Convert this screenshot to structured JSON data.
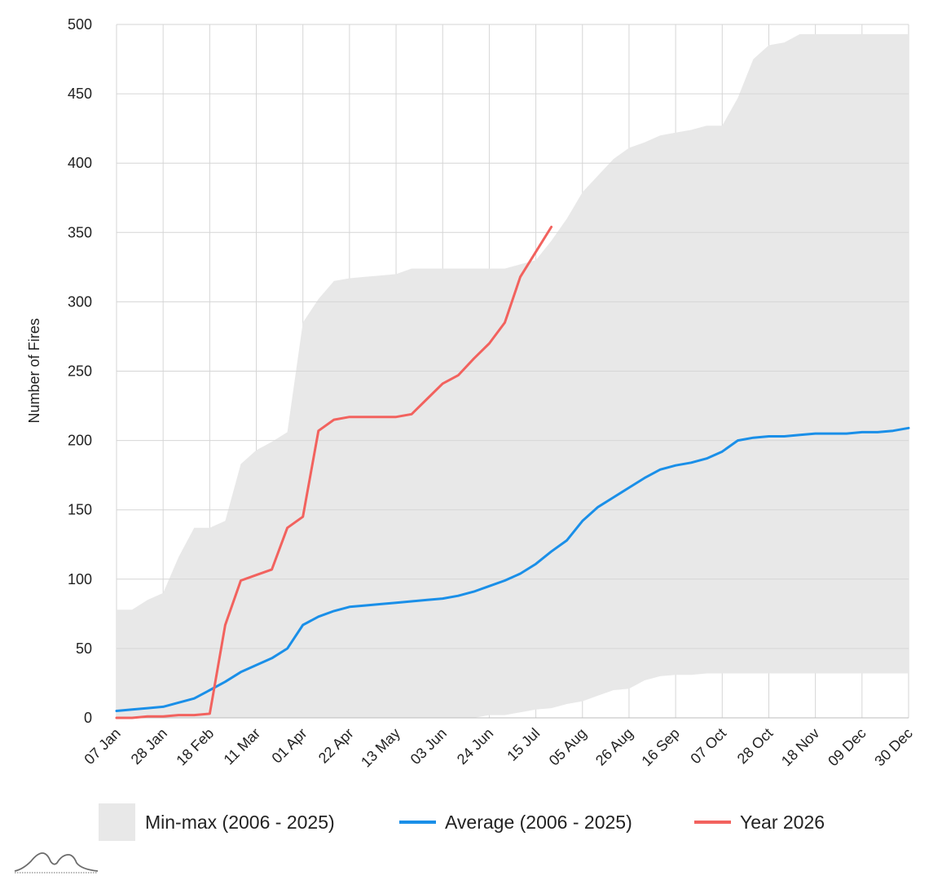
{
  "chart_data": {
    "type": "line",
    "ylabel": "Number of Fires",
    "ylim": [
      0,
      500
    ],
    "y_ticks": [
      0,
      50,
      100,
      150,
      200,
      250,
      300,
      350,
      400,
      450,
      500
    ],
    "x_range": [
      "2026-01-07",
      "2026-12-30"
    ],
    "x_tick_labels": [
      "07 Jan",
      "28 Jan",
      "18 Feb",
      "11 Mar",
      "01 Apr",
      "22 Apr",
      "13 May",
      "03 Jun",
      "24 Jun",
      "15 Jul",
      "05 Aug",
      "26 Aug",
      "16 Sep",
      "07 Oct",
      "28 Oct",
      "18 Nov",
      "09 Dec",
      "30 Dec"
    ],
    "x_tick_dates": [
      "2026-01-07",
      "2026-01-28",
      "2026-02-18",
      "2026-03-11",
      "2026-04-01",
      "2026-04-22",
      "2026-05-13",
      "2026-06-03",
      "2026-06-24",
      "2026-07-15",
      "2026-08-05",
      "2026-08-26",
      "2026-09-16",
      "2026-10-07",
      "2026-10-28",
      "2026-11-18",
      "2026-12-09",
      "2026-12-30"
    ],
    "grid": true,
    "legend_position": "bottom",
    "min_max": {
      "name": "Min-max (2006 - 2025)",
      "color": "#e8e8e8",
      "x": [
        "2026-01-07",
        "2026-01-14",
        "2026-01-21",
        "2026-01-28",
        "2026-02-04",
        "2026-02-11",
        "2026-02-18",
        "2026-02-25",
        "2026-03-04",
        "2026-03-11",
        "2026-03-18",
        "2026-03-25",
        "2026-04-01",
        "2026-04-08",
        "2026-04-15",
        "2026-04-22",
        "2026-04-29",
        "2026-05-06",
        "2026-05-13",
        "2026-05-20",
        "2026-05-27",
        "2026-06-03",
        "2026-06-10",
        "2026-06-17",
        "2026-06-24",
        "2026-07-01",
        "2026-07-08",
        "2026-07-15",
        "2026-07-22",
        "2026-07-29",
        "2026-08-05",
        "2026-08-12",
        "2026-08-19",
        "2026-08-26",
        "2026-09-02",
        "2026-09-09",
        "2026-09-16",
        "2026-09-23",
        "2026-09-30",
        "2026-10-07",
        "2026-10-14",
        "2026-10-21",
        "2026-10-28",
        "2026-11-04",
        "2026-11-11",
        "2026-11-18",
        "2026-11-25",
        "2026-12-02",
        "2026-12-09",
        "2026-12-16",
        "2026-12-23",
        "2026-12-30"
      ],
      "low": [
        0,
        0,
        0,
        0,
        0,
        0,
        0,
        0,
        0,
        0,
        0,
        0,
        0,
        0,
        0,
        0,
        0,
        0,
        0,
        0,
        0,
        0,
        0,
        0,
        2,
        2,
        4,
        6,
        7,
        10,
        12,
        16,
        20,
        21,
        27,
        30,
        31,
        31,
        32,
        32,
        32,
        32,
        32,
        32,
        32,
        32,
        32,
        32,
        32,
        32,
        32,
        32
      ],
      "high": [
        78,
        78,
        85,
        90,
        116,
        137,
        137,
        142,
        183,
        193,
        199,
        206,
        285,
        302,
        315,
        317,
        318,
        319,
        320,
        324,
        324,
        324,
        324,
        324,
        324,
        324,
        327,
        330,
        344,
        360,
        379,
        391,
        403,
        411,
        415,
        420,
        422,
        424,
        427,
        427,
        447,
        475,
        485,
        487,
        493,
        493,
        493,
        493,
        493,
        493,
        493,
        493
      ]
    },
    "series": [
      {
        "name": "Average (2006 - 2025)",
        "color": "#1a8fe8",
        "x": [
          "2026-01-07",
          "2026-01-14",
          "2026-01-21",
          "2026-01-28",
          "2026-02-04",
          "2026-02-11",
          "2026-02-18",
          "2026-02-25",
          "2026-03-04",
          "2026-03-11",
          "2026-03-18",
          "2026-03-25",
          "2026-04-01",
          "2026-04-08",
          "2026-04-15",
          "2026-04-22",
          "2026-04-29",
          "2026-05-06",
          "2026-05-13",
          "2026-05-20",
          "2026-05-27",
          "2026-06-03",
          "2026-06-10",
          "2026-06-17",
          "2026-06-24",
          "2026-07-01",
          "2026-07-08",
          "2026-07-15",
          "2026-07-22",
          "2026-07-29",
          "2026-08-05",
          "2026-08-12",
          "2026-08-19",
          "2026-08-26",
          "2026-09-02",
          "2026-09-09",
          "2026-09-16",
          "2026-09-23",
          "2026-09-30",
          "2026-10-07",
          "2026-10-14",
          "2026-10-21",
          "2026-10-28",
          "2026-11-04",
          "2026-11-11",
          "2026-11-18",
          "2026-11-25",
          "2026-12-02",
          "2026-12-09",
          "2026-12-16",
          "2026-12-23",
          "2026-12-30"
        ],
        "values": [
          5,
          6,
          7,
          8,
          11,
          14,
          20,
          26,
          33,
          38,
          43,
          50,
          67,
          73,
          77,
          80,
          81,
          82,
          83,
          84,
          85,
          86,
          88,
          91,
          95,
          99,
          104,
          111,
          120,
          128,
          142,
          152,
          159,
          166,
          173,
          179,
          182,
          184,
          187,
          192,
          200,
          202,
          203,
          203,
          204,
          205,
          205,
          205,
          206,
          206,
          207,
          209
        ]
      },
      {
        "name": "Year 2026",
        "color": "#f2625e",
        "x": [
          "2026-01-07",
          "2026-01-14",
          "2026-01-21",
          "2026-01-28",
          "2026-02-04",
          "2026-02-11",
          "2026-02-18",
          "2026-02-25",
          "2026-03-04",
          "2026-03-11",
          "2026-03-18",
          "2026-03-25",
          "2026-04-01",
          "2026-04-08",
          "2026-04-15",
          "2026-04-22",
          "2026-04-29",
          "2026-05-06",
          "2026-05-13",
          "2026-05-20",
          "2026-05-27",
          "2026-06-03",
          "2026-06-10",
          "2026-06-17",
          "2026-06-24",
          "2026-07-01",
          "2026-07-08",
          "2026-07-15",
          "2026-07-22"
        ],
        "values": [
          0,
          0,
          1,
          1,
          2,
          2,
          3,
          67,
          99,
          103,
          107,
          137,
          145,
          207,
          215,
          217,
          217,
          217,
          217,
          219,
          230,
          241,
          247,
          259,
          270,
          285,
          318,
          336,
          354
        ]
      }
    ]
  },
  "logo": {
    "name": "logo-mountains-icon"
  }
}
